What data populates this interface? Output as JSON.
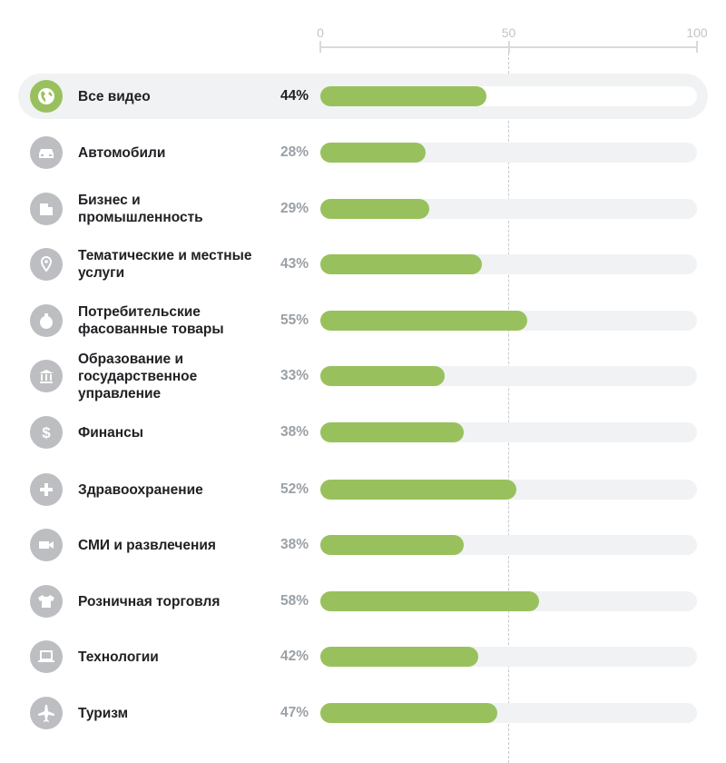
{
  "chart_data": {
    "type": "bar",
    "orientation": "horizontal",
    "xlim": [
      0,
      100
    ],
    "ticks": [
      "0",
      "50",
      "100"
    ],
    "reference_line": 50,
    "categories": [
      "Все видео",
      "Автомобили",
      "Бизнес и промышленность",
      "Тематические и местные услуги",
      "Потребительские фасованные товары",
      "Образование и государственное управление",
      "Финансы",
      "Здравоохранение",
      "СМИ и развлечения",
      "Розничная торговля",
      "Технологии",
      "Туризм"
    ],
    "values": [
      44,
      28,
      29,
      43,
      55,
      33,
      38,
      52,
      38,
      58,
      42,
      47
    ],
    "labels": [
      "44%",
      "28%",
      "29%",
      "43%",
      "55%",
      "33%",
      "38%",
      "52%",
      "38%",
      "58%",
      "42%",
      "47%"
    ],
    "icons": [
      "globe-icon",
      "car-icon",
      "building-icon",
      "location-pin-icon",
      "bottle-icon",
      "bank-icon",
      "dollar-icon",
      "plus-icon",
      "video-camera-icon",
      "t-shirt-icon",
      "laptop-icon",
      "airplane-icon"
    ],
    "highlighted": 0
  },
  "colors": {
    "bar": "#98c15d",
    "track": "#f1f2f4",
    "icon": "#bdbec1"
  }
}
